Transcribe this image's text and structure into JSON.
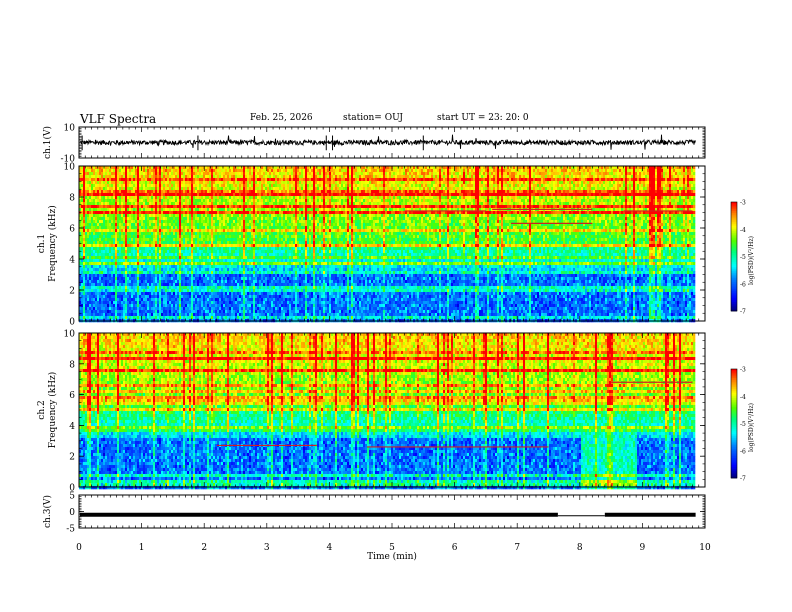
{
  "header": {
    "title": "VLF Spectra",
    "date": "Feb. 25, 2026",
    "station": "station= OUJ",
    "start": "start  UT =   23: 20: 0"
  },
  "chart_data": [
    {
      "type": "line",
      "name": "ch1-waveform",
      "ylabel": "ch.1(V)",
      "ylim": [
        -10,
        10
      ],
      "yticks": [
        "10",
        "-10"
      ],
      "baseline": 0,
      "amplitude": 1.5
    },
    {
      "type": "heatmap",
      "name": "ch1-spectrogram",
      "ylabel_line1": "ch.1",
      "ylabel_line2": "Frequency  (kHz)",
      "ylim": [
        0,
        10
      ],
      "yticks": [
        "0",
        "2",
        "4",
        "6",
        "8",
        "10"
      ],
      "colorbar": {
        "label": "log(PSD)(V²/Hz)",
        "range": [
          -7,
          -3
        ],
        "ticks": [
          "-3",
          "-4",
          "-5",
          "-6",
          "-7"
        ]
      }
    },
    {
      "type": "heatmap",
      "name": "ch2-spectrogram",
      "ylabel_line1": "ch.2",
      "ylabel_line2": "Frequency  (kHz)",
      "ylim": [
        0,
        10
      ],
      "yticks": [
        "0",
        "2",
        "4",
        "6",
        "8",
        "10"
      ],
      "colorbar": {
        "label": "log(PSD)(V²/Hz)",
        "range": [
          -7,
          -3
        ],
        "ticks": [
          "-3",
          "-4",
          "-5",
          "-6",
          "-7"
        ]
      }
    },
    {
      "type": "line",
      "name": "ch3-waveform",
      "ylabel": "ch.3(V)",
      "ylim": [
        -5,
        5
      ],
      "yticks": [
        "5",
        "0",
        "-5"
      ],
      "baseline": -1,
      "gap": [
        7.65,
        8.4
      ]
    }
  ],
  "xaxis": {
    "label": "Time  (min)",
    "xlim": [
      0,
      10
    ],
    "ticks": [
      "0",
      "1",
      "2",
      "3",
      "4",
      "5",
      "6",
      "7",
      "8",
      "9",
      "10"
    ]
  },
  "colors": {
    "scale": [
      "#0000a0",
      "#0000ff",
      "#0080ff",
      "#00ffff",
      "#00ff80",
      "#40ff00",
      "#ffff00",
      "#ff8000",
      "#ff0000",
      "#ffffff"
    ]
  }
}
